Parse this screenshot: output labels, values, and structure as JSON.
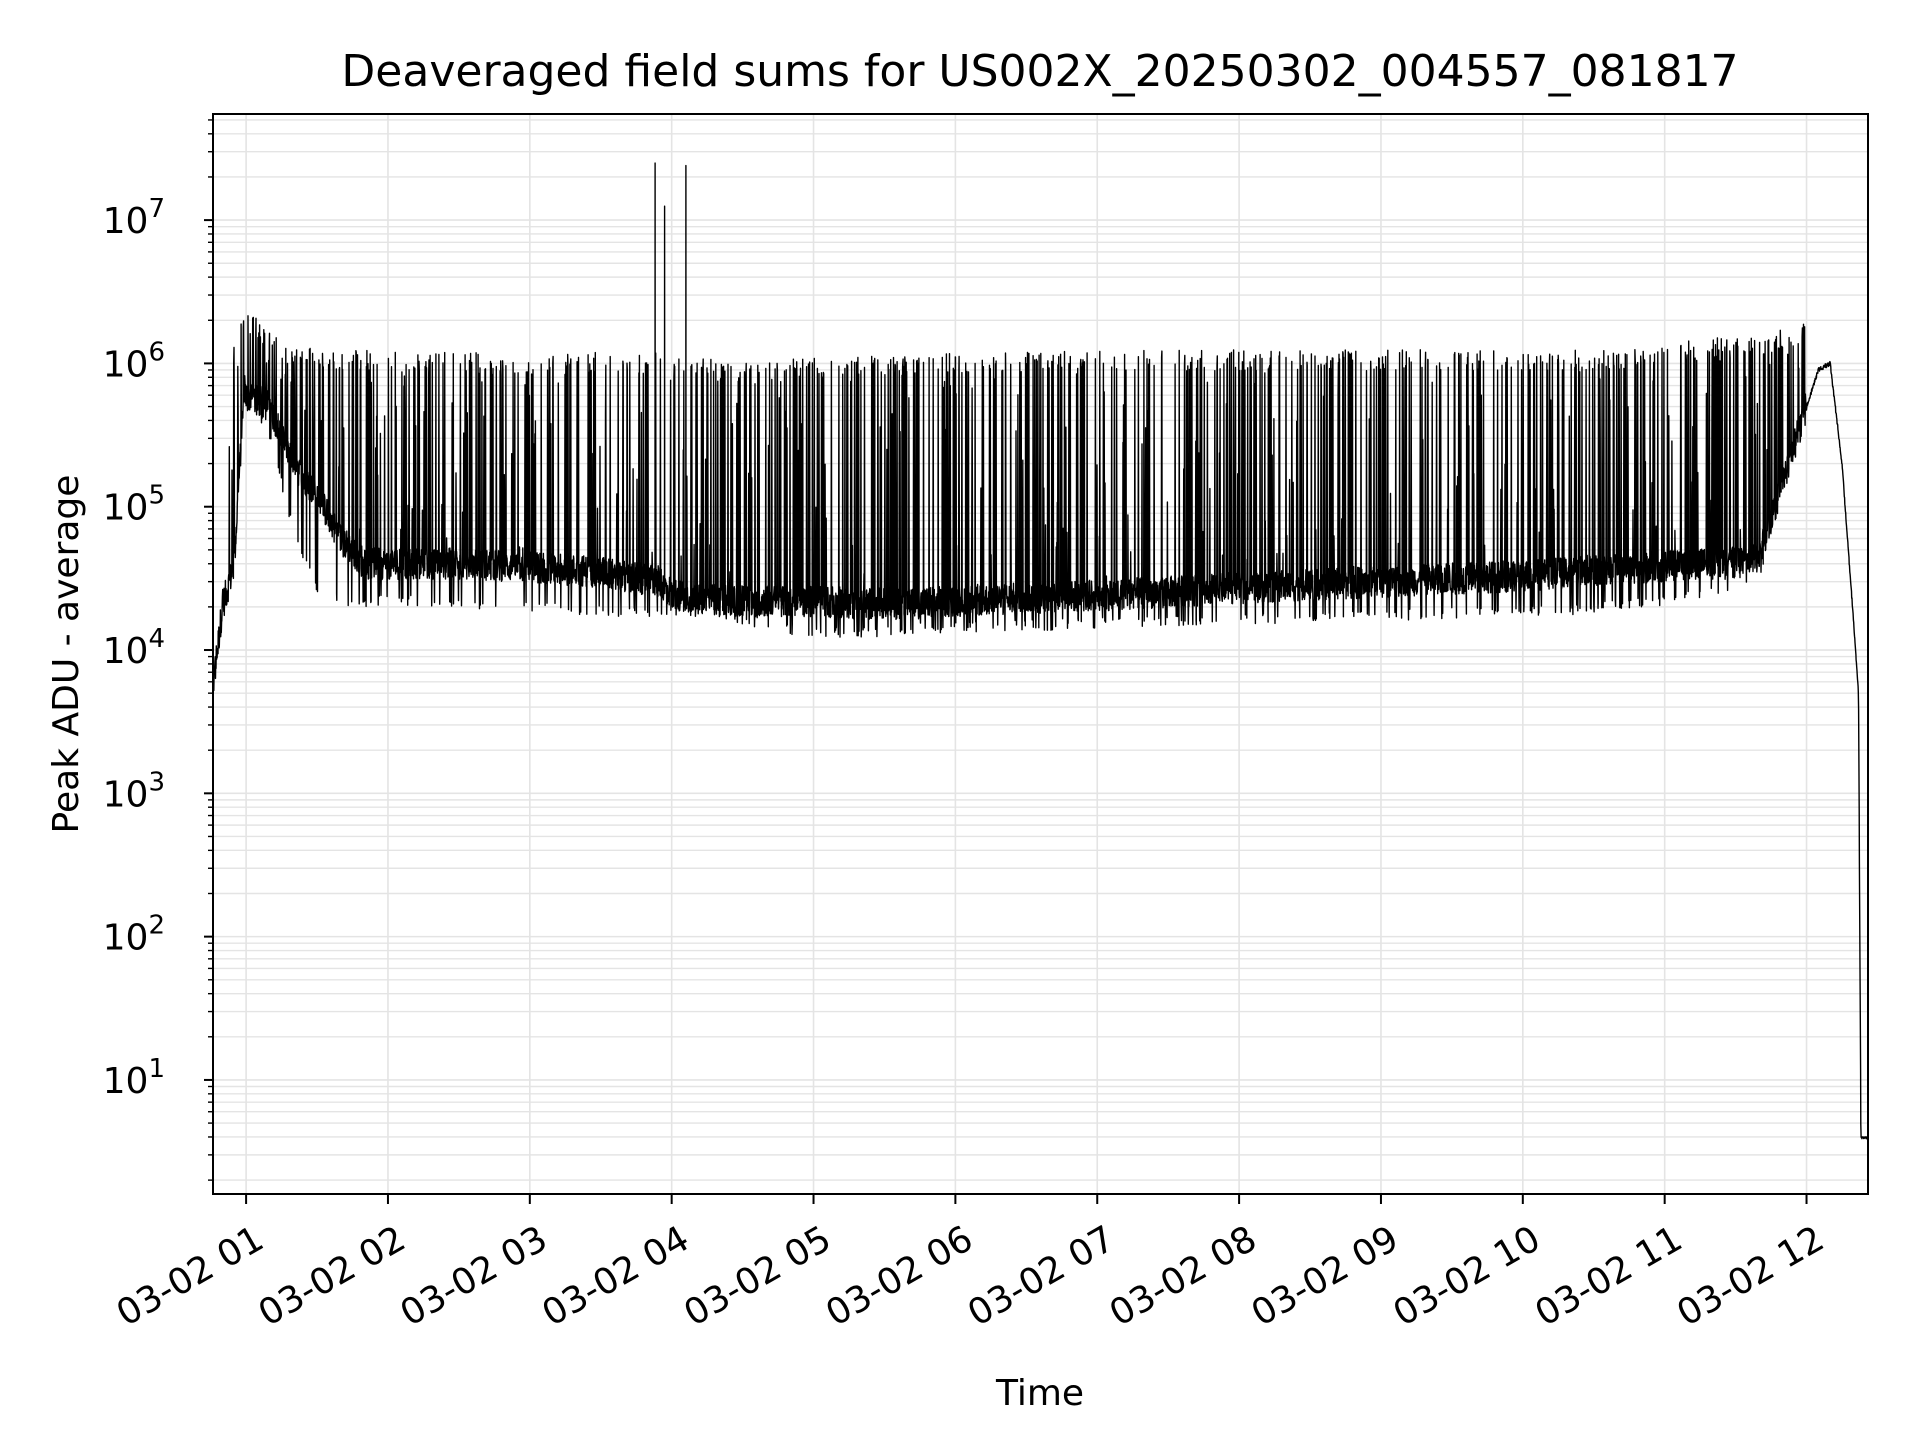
{
  "chart_data": {
    "type": "line",
    "title": "Deaveraged field sums for US002X_20250302_004557_081817",
    "xlabel": "Time",
    "ylabel": "Peak ADU - average",
    "x_scale": "time",
    "y_scale": "log",
    "xlim": [
      "2025-03-02 00:46",
      "2025-03-02 12:26"
    ],
    "ylim": [
      1.6,
      55000000
    ],
    "grid": true,
    "x_ticks": [
      "03-02 01",
      "03-02 02",
      "03-02 03",
      "03-02 04",
      "03-02 05",
      "03-02 06",
      "03-02 07",
      "03-02 08",
      "03-02 09",
      "03-02 10",
      "03-02 11",
      "03-02 12"
    ],
    "y_ticks": [
      {
        "base": "10",
        "exp": "1"
      },
      {
        "base": "10",
        "exp": "2"
      },
      {
        "base": "10",
        "exp": "3"
      },
      {
        "base": "10",
        "exp": "4"
      },
      {
        "base": "10",
        "exp": "5"
      },
      {
        "base": "10",
        "exp": "6"
      },
      {
        "base": "10",
        "exp": "7"
      }
    ],
    "series": [
      {
        "color": "#000000",
        "envelope": {
          "time": [
            "00:46",
            "00:50",
            "00:55",
            "00:59",
            "01:10",
            "01:20",
            "01:30",
            "01:40",
            "01:50",
            "02:00",
            "02:30",
            "03:00",
            "03:30",
            "03:55",
            "04:00",
            "04:10",
            "04:30",
            "05:00",
            "05:20",
            "05:40",
            "06:00",
            "07:00",
            "08:00",
            "09:00",
            "10:00",
            "10:30",
            "11:00",
            "11:15",
            "11:30",
            "11:40",
            "12:00",
            "12:05",
            "12:10",
            "12:15",
            "12:20",
            "12:22",
            "12:23",
            "12:26"
          ],
          "baseline": [
            5500,
            20000,
            40000,
            600000,
            500000,
            200000,
            120000,
            60000,
            40000,
            40000,
            40000,
            38000,
            35000,
            30000,
            25000,
            23000,
            22000,
            22000,
            21000,
            21000,
            22000,
            24000,
            27000,
            30000,
            33000,
            36000,
            38000,
            40000,
            40000,
            45000,
            500000,
            900000,
            1000000,
            200000,
            15000,
            5000,
            4,
            4
          ],
          "peaks": [
            7000,
            30000,
            1500000,
            2500000,
            1700000,
            1300000,
            1300000,
            1250000,
            1250000,
            1200000,
            1200000,
            1150000,
            1200000,
            1200000,
            1100000,
            1100000,
            1000000,
            1100000,
            1150000,
            1150000,
            1200000,
            1250000,
            1250000,
            1250000,
            1250000,
            1250000,
            1300000,
            1500000,
            1550000,
            1600000,
            1900000,
            1500000,
            1100000,
            300000,
            15000,
            5000,
            4,
            4
          ],
          "troughs": [
            5500,
            20000,
            40000,
            500000,
            300000,
            60000,
            25000,
            20000,
            20000,
            20000,
            20000,
            18000,
            17000,
            17000,
            17000,
            17000,
            15000,
            12000,
            12000,
            13000,
            13000,
            14000,
            15000,
            16000,
            17000,
            18000,
            20000,
            22000,
            25000,
            30000,
            500000,
            900000,
            900000,
            150000,
            13000,
            4000,
            4,
            4
          ]
        },
        "spikes": [
          {
            "time": "03:53",
            "value": 25000000
          },
          {
            "time": "03:57",
            "value": 12500000
          },
          {
            "time": "04:06",
            "value": 24000000
          }
        ]
      }
    ]
  }
}
